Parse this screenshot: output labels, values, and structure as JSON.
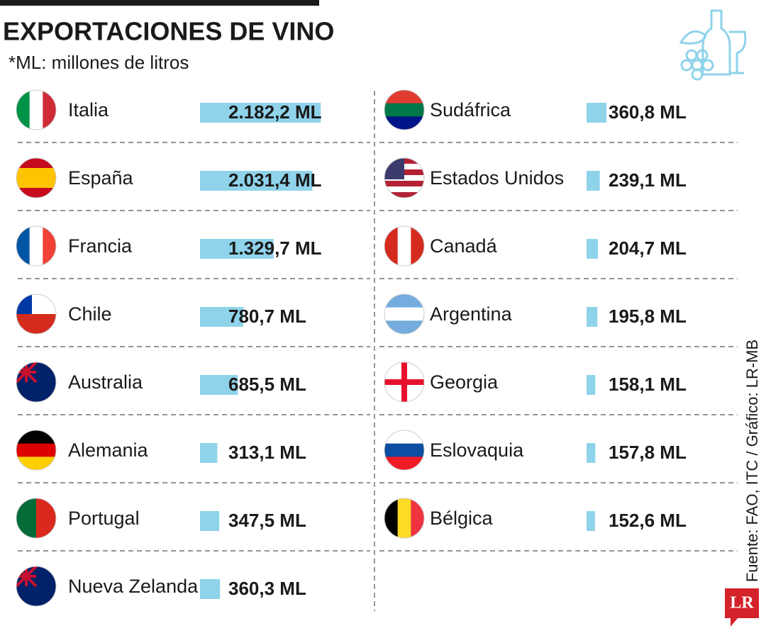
{
  "chart_data": {
    "type": "bar",
    "title": "EXPORTACIONES DE VINO",
    "subtitle": "*ML: millones de litros",
    "source": "Fuente: FAO, ITC / Gráfico: LR-MB",
    "logo": "LR",
    "categories": [
      "Italia",
      "España",
      "Francia",
      "Chile",
      "Australia",
      "Alemania",
      "Portugal",
      "Nueva Zelanda",
      "Sudáfrica",
      "Estados Unidos",
      "Canadá",
      "Argentina",
      "Georgia",
      "Eslovaquia",
      "Bélgica"
    ],
    "values": [
      2182.2,
      2031.4,
      1329.7,
      780.7,
      685.5,
      313.1,
      347.5,
      360.3,
      360.8,
      239.1,
      204.7,
      195.8,
      158.1,
      157.8,
      152.6
    ],
    "value_labels": [
      "2.182,2 ML",
      "2.031,4 ML",
      "1.329,7 ML",
      "780,7 ML",
      "685,5 ML",
      "313,1 ML",
      "347,5 ML",
      "360,3 ML",
      "360,8 ML",
      "239,1 ML",
      "204,7 ML",
      "195,8 ML",
      "158,1 ML",
      "157,8 ML",
      "152,6 ML"
    ],
    "color": "#8fd3ea"
  }
}
